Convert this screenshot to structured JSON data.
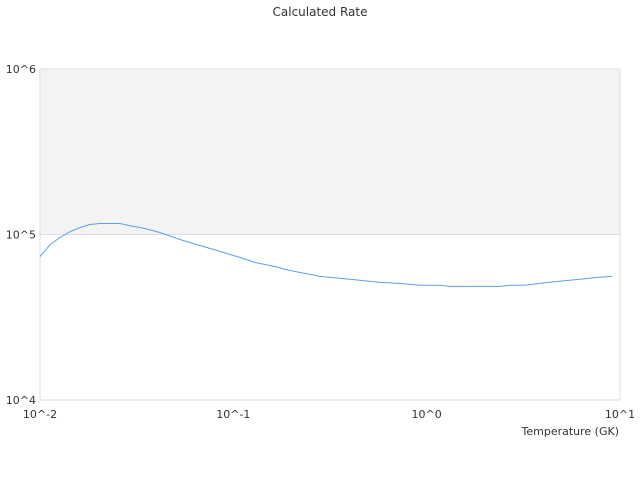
{
  "chart_data": {
    "type": "line",
    "title": "Calculated Rate",
    "xlabel": "Temperature (GK)",
    "ylabel": "",
    "x_scale": "log",
    "y_scale": "log",
    "xlim": [
      0.01,
      10
    ],
    "ylim": [
      10000,
      1000000
    ],
    "x_ticks": [
      {
        "value": 0.01,
        "label": "10^-2"
      },
      {
        "value": 0.1,
        "label": "10^-1"
      },
      {
        "value": 1,
        "label": "10^0"
      },
      {
        "value": 10,
        "label": "10^1"
      }
    ],
    "y_ticks": [
      {
        "value": 10000,
        "label": "10^4"
      },
      {
        "value": 100000,
        "label": "10^5"
      },
      {
        "value": 1000000,
        "label": "10^6"
      }
    ],
    "grid": true,
    "alternating_bands": true,
    "colors": {
      "line": "#5aa0f0",
      "band": "#f3f3f3",
      "grid": "#dddddd"
    },
    "series": [
      {
        "x": [
          0.01,
          0.0113,
          0.0127,
          0.0143,
          0.0161,
          0.0181,
          0.0204,
          0.0259,
          0.0292,
          0.0349,
          0.0417,
          0.0529,
          0.0672,
          0.0853,
          0.108,
          0.129,
          0.164,
          0.185,
          0.22,
          0.28,
          0.4,
          0.57,
          0.73,
          0.92,
          1.17,
          1.32,
          2.4,
          2.7,
          3.2,
          4.3,
          6.2,
          7.5,
          9.1
        ],
        "y": [
          73600,
          87000,
          96000,
          104000,
          110000,
          115000,
          116500,
          116500,
          113000,
          108700,
          102800,
          93300,
          85800,
          79000,
          72700,
          67800,
          64100,
          61500,
          59000,
          55800,
          53600,
          51400,
          50600,
          49300,
          49300,
          48600,
          48600,
          49300,
          49300,
          51400,
          53600,
          55000,
          55800
        ]
      }
    ]
  }
}
